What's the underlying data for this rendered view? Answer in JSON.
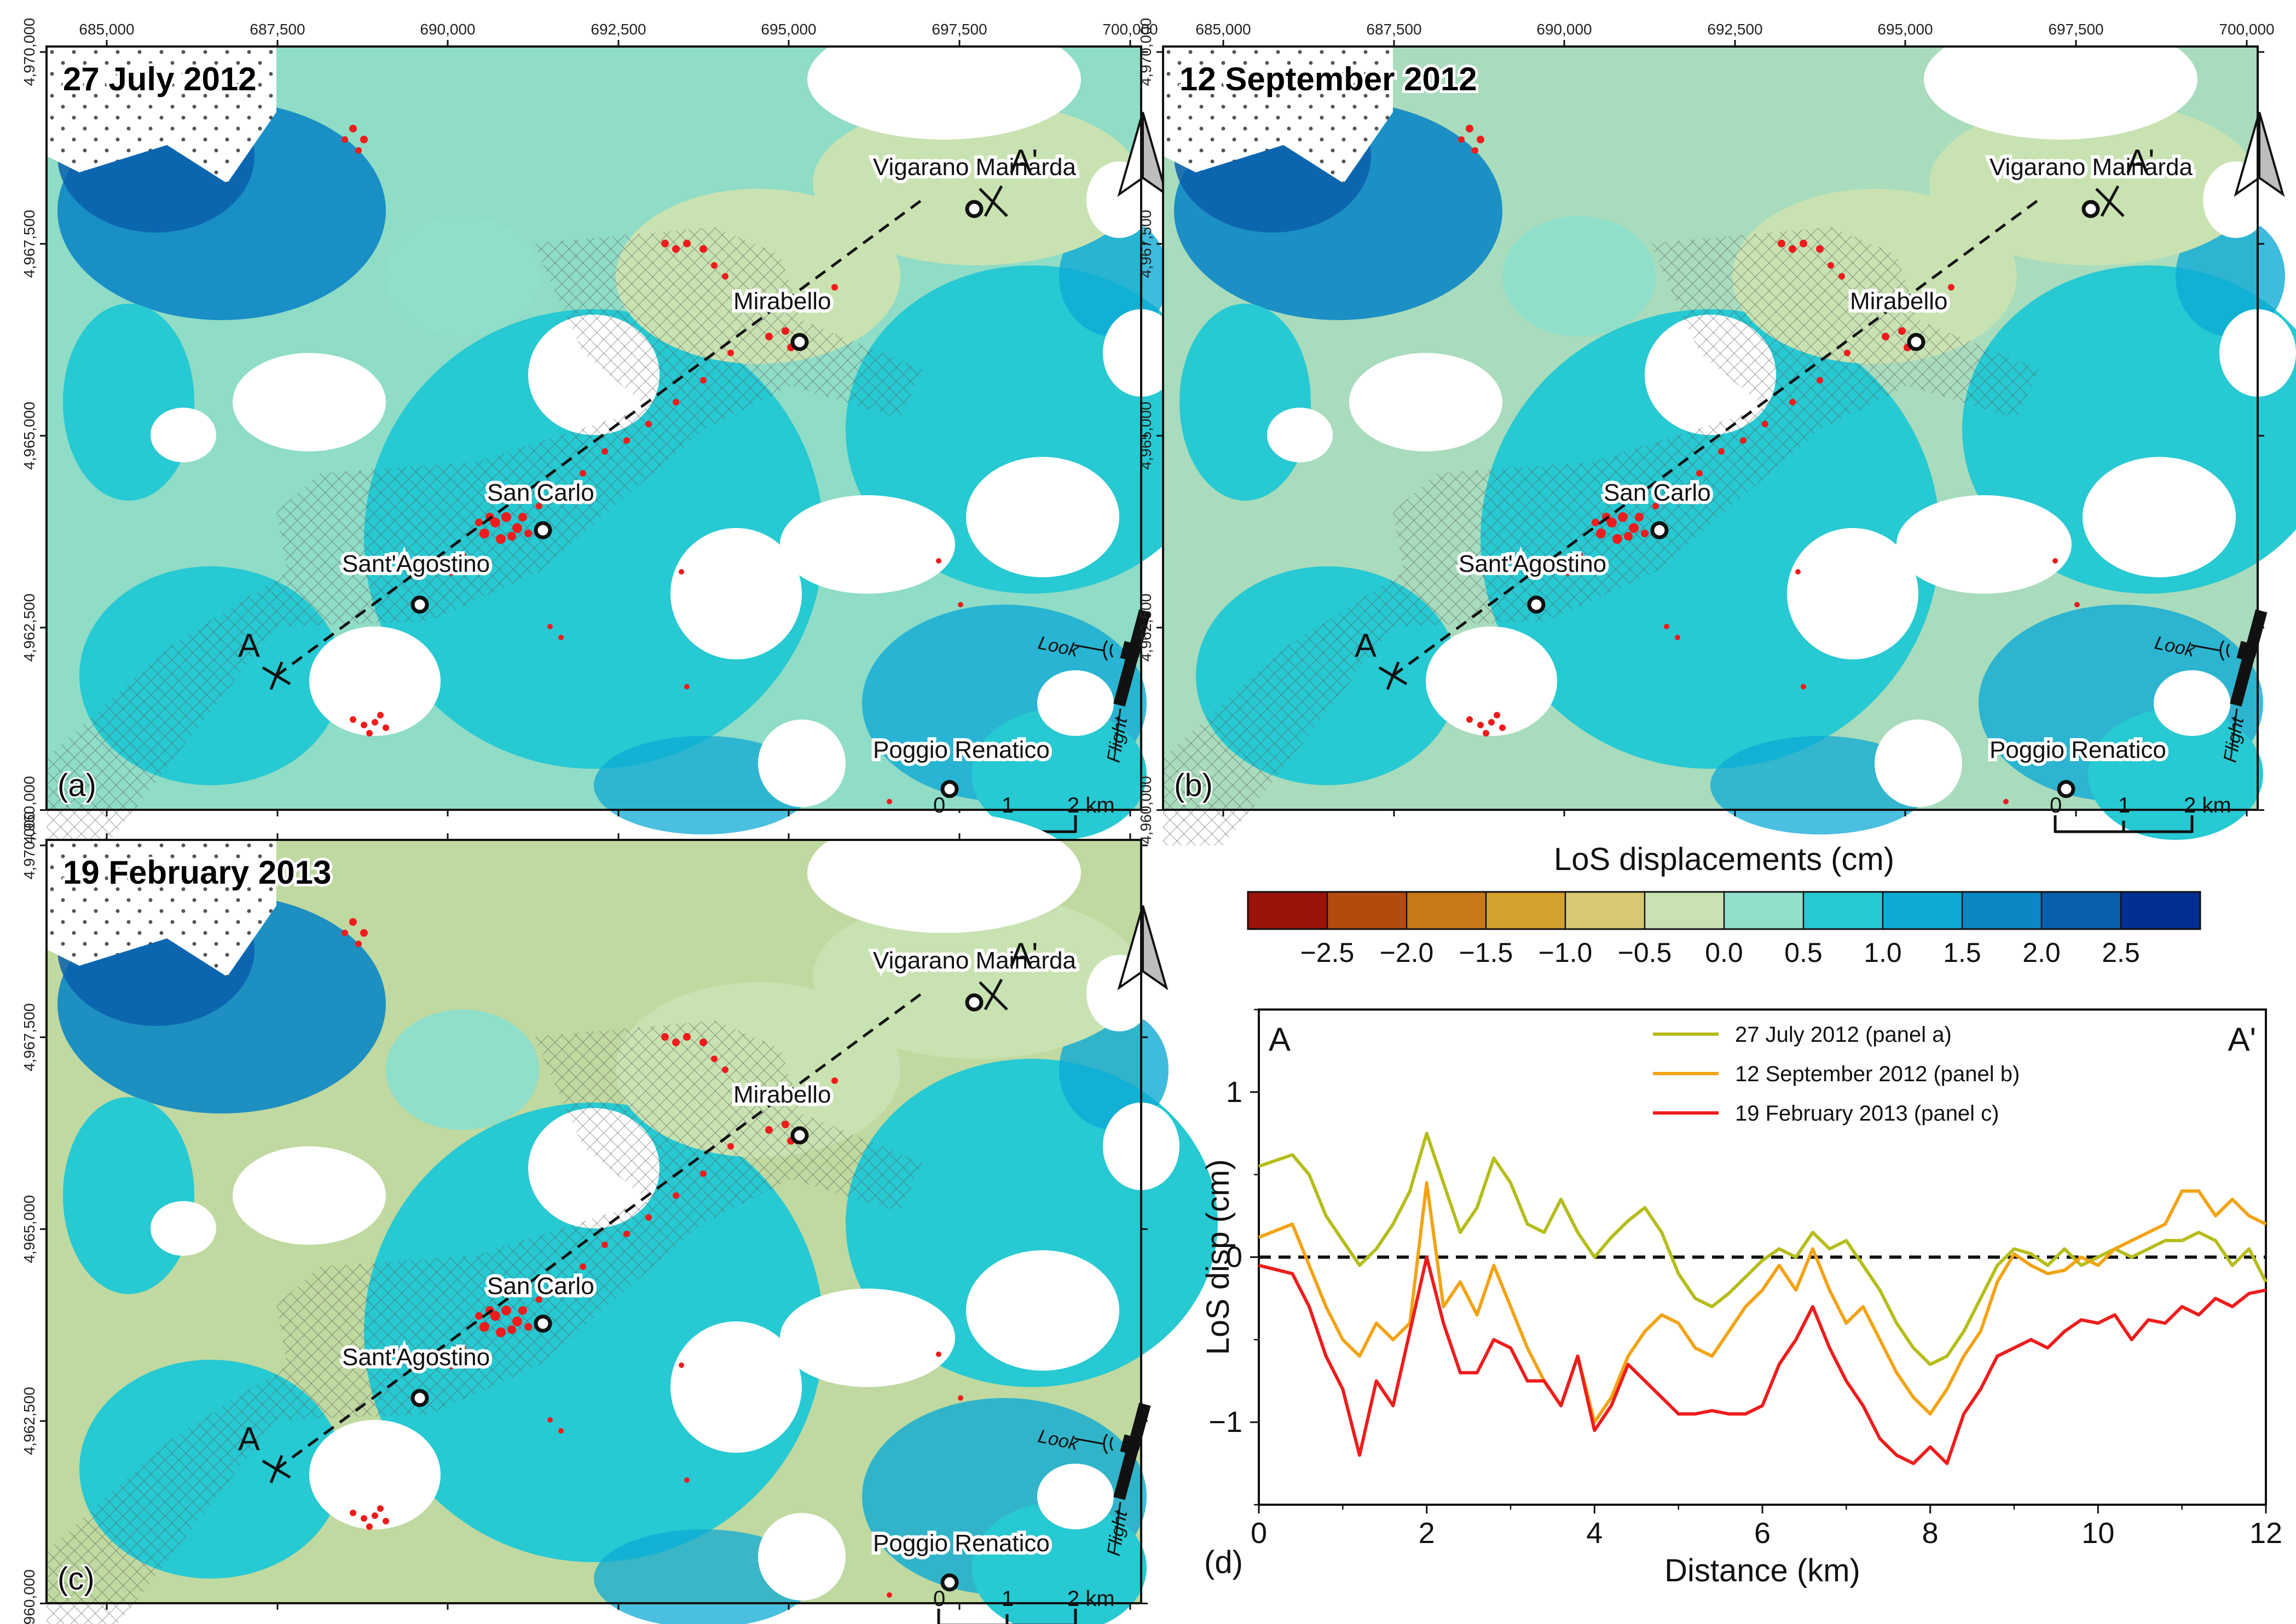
{
  "figure": {
    "x_ticks": [
      "685,000",
      "687,500",
      "690,000",
      "692,500",
      "695,000",
      "697,500",
      "700,000"
    ],
    "y_ticks": [
      "4,970,000",
      "4,967,500",
      "4,965,000",
      "4,962,500",
      "4,960,000"
    ],
    "scale": {
      "zero": "0",
      "one": "1",
      "two": "2 km"
    },
    "satellite": {
      "look": "Look",
      "flight": "Flight"
    },
    "section_start": "A",
    "section_end": "A'"
  },
  "panels": [
    {
      "title": "27 July 2012",
      "label": "(a)",
      "fill": "#8fdcc7"
    },
    {
      "title": "12 September 2012",
      "label": "(b)",
      "fill": "#a8dcbc"
    },
    {
      "title": "19 February  2013",
      "label": "(c)",
      "fill": "#bfd9a0"
    }
  ],
  "towns": [
    "Vigarano Mainarda",
    "Mirabello",
    "San Carlo",
    "Sant'Agostino",
    "Poggio Renatico"
  ],
  "colorbar": {
    "title": "LoS displacements (cm)",
    "colors": [
      "#9b1308",
      "#b44a0e",
      "#c77917",
      "#d4a02e",
      "#d7c874",
      "#c9e2b2",
      "#8fdfcb",
      "#27c9d2",
      "#0eaad4",
      "#0c86c4",
      "#095fab",
      "#052e94"
    ],
    "ticks": [
      "−2.5",
      "−2.0",
      "−1.5",
      "−1.0",
      "−0.5",
      "0.0",
      "0.5",
      "1.0",
      "1.5",
      "2.0",
      "2.5"
    ]
  },
  "chart_data": {
    "type": "line",
    "title": "",
    "panel_label": "(d)",
    "xlabel": "Distance (km)",
    "ylabel": "LoS disp (cm)",
    "xlim": [
      0,
      12
    ],
    "ylim": [
      -1.5,
      1.5
    ],
    "x_ticks": [
      "0",
      "2",
      "4",
      "6",
      "8",
      "10",
      "12"
    ],
    "y_ticks": [
      "−1",
      "0",
      "1"
    ],
    "corner_left": "A",
    "corner_right": "A'",
    "x": [
      0,
      0.4,
      0.6,
      0.8,
      1.0,
      1.2,
      1.4,
      1.6,
      1.8,
      2.0,
      2.2,
      2.4,
      2.6,
      2.8,
      3.0,
      3.2,
      3.4,
      3.6,
      3.8,
      4.0,
      4.2,
      4.4,
      4.6,
      4.8,
      5.0,
      5.2,
      5.4,
      5.6,
      5.8,
      6.0,
      6.2,
      6.4,
      6.6,
      6.8,
      7.0,
      7.2,
      7.4,
      7.6,
      7.8,
      8.0,
      8.2,
      8.4,
      8.6,
      8.8,
      9.0,
      9.2,
      9.4,
      9.6,
      9.8,
      10.0,
      10.2,
      10.4,
      10.6,
      10.8,
      11.0,
      11.2,
      11.4,
      11.6,
      11.8,
      12.0
    ],
    "series": [
      {
        "name": "27 July 2012 (panel a)",
        "color": "#b5bd1a",
        "values": [
          0.55,
          0.62,
          0.5,
          0.25,
          0.1,
          -0.05,
          0.05,
          0.2,
          0.4,
          0.75,
          0.45,
          0.15,
          0.3,
          0.6,
          0.45,
          0.2,
          0.15,
          0.35,
          0.15,
          0.0,
          0.12,
          0.22,
          0.3,
          0.15,
          -0.1,
          -0.25,
          -0.3,
          -0.22,
          -0.12,
          -0.02,
          0.05,
          0.0,
          0.15,
          0.05,
          0.1,
          -0.05,
          -0.2,
          -0.4,
          -0.55,
          -0.65,
          -0.6,
          -0.45,
          -0.25,
          -0.05,
          0.05,
          0.02,
          -0.05,
          0.05,
          -0.05,
          0.0,
          0.05,
          0.0,
          0.05,
          0.1,
          0.1,
          0.15,
          0.1,
          -0.05,
          0.05,
          -0.15
        ]
      },
      {
        "name": "12 September 2012 (panel b)",
        "color": "#f2a314",
        "values": [
          0.12,
          0.2,
          -0.05,
          -0.3,
          -0.5,
          -0.6,
          -0.4,
          -0.5,
          -0.4,
          0.45,
          -0.3,
          -0.15,
          -0.35,
          -0.05,
          -0.3,
          -0.55,
          -0.75,
          -0.9,
          -0.6,
          -1.0,
          -0.85,
          -0.6,
          -0.45,
          -0.35,
          -0.4,
          -0.55,
          -0.6,
          -0.45,
          -0.3,
          -0.2,
          -0.05,
          -0.2,
          0.05,
          -0.2,
          -0.4,
          -0.3,
          -0.5,
          -0.7,
          -0.85,
          -0.95,
          -0.8,
          -0.6,
          -0.45,
          -0.15,
          0.02,
          -0.05,
          -0.1,
          -0.08,
          0.0,
          -0.05,
          0.05,
          0.1,
          0.15,
          0.2,
          0.4,
          0.4,
          0.25,
          0.35,
          0.25,
          0.2
        ]
      },
      {
        "name": "19 February 2013 (panel c)",
        "color": "#ee1c1c",
        "values": [
          -0.05,
          -0.1,
          -0.3,
          -0.6,
          -0.8,
          -1.2,
          -0.75,
          -0.9,
          -0.45,
          0.0,
          -0.4,
          -0.7,
          -0.7,
          -0.5,
          -0.55,
          -0.75,
          -0.75,
          -0.9,
          -0.6,
          -1.05,
          -0.9,
          -0.65,
          -0.75,
          -0.85,
          -0.95,
          -0.95,
          -0.93,
          -0.95,
          -0.95,
          -0.9,
          -0.65,
          -0.5,
          -0.3,
          -0.55,
          -0.75,
          -0.9,
          -1.1,
          -1.2,
          -1.25,
          -1.15,
          -1.25,
          -0.95,
          -0.8,
          -0.6,
          -0.55,
          -0.5,
          -0.55,
          -0.45,
          -0.38,
          -0.4,
          -0.35,
          -0.5,
          -0.38,
          -0.4,
          -0.3,
          -0.35,
          -0.25,
          -0.3,
          -0.22,
          -0.2
        ]
      }
    ]
  }
}
